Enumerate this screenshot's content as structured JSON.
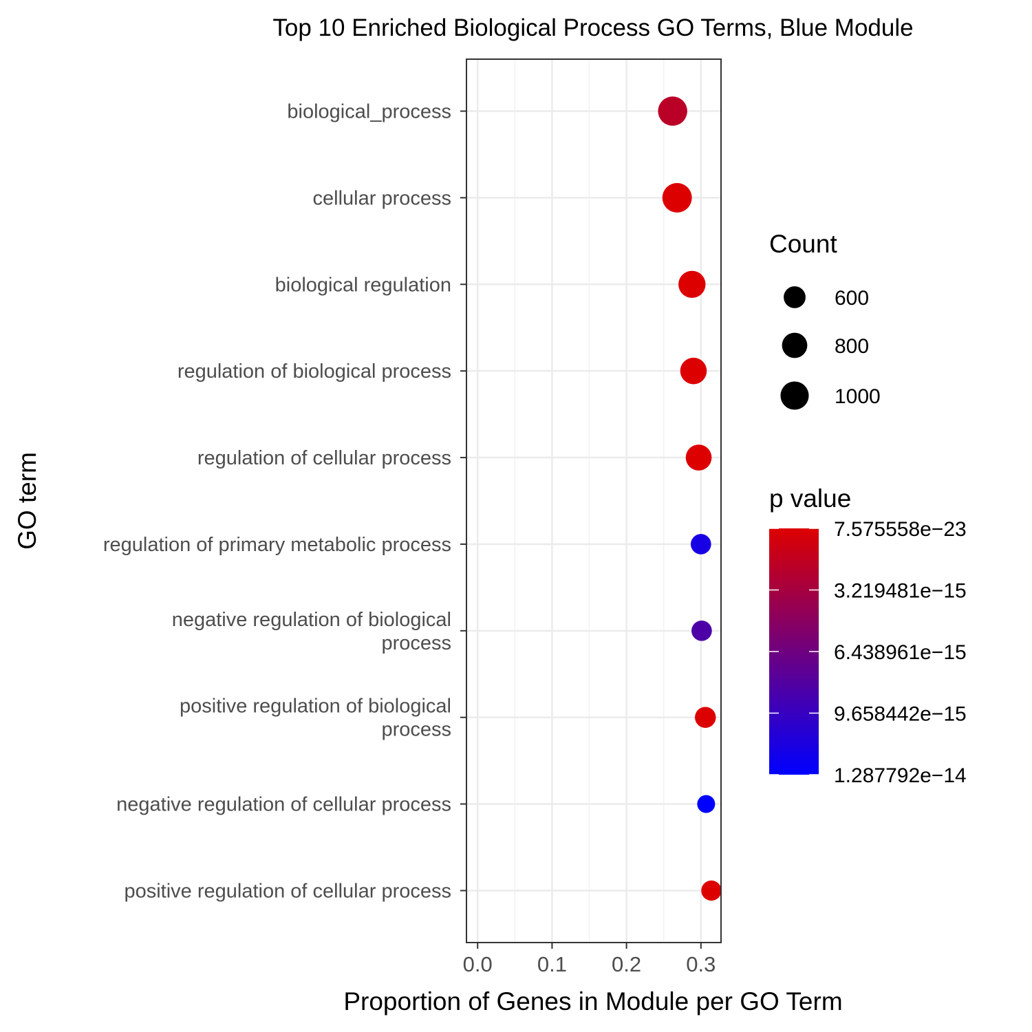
{
  "chart_data": {
    "type": "scatter",
    "title": "Top 10 Enriched Biological Process GO Terms, Blue Module",
    "xlabel": "Proportion of Genes in Module per GO Term",
    "ylabel": "GO term",
    "xlim": [
      -0.015,
      0.327
    ],
    "x_ticks": [
      "0.0",
      "0.1",
      "0.2",
      "0.3"
    ],
    "grid": true,
    "points": [
      {
        "term": "biological_process",
        "proportion": 0.262,
        "count": 1070,
        "p_value": 2e-15
      },
      {
        "term": "cellular process",
        "proportion": 0.268,
        "count": 1090,
        "p_value": 7.575558e-23
      },
      {
        "term": "biological regulation",
        "proportion": 0.288,
        "count": 920,
        "p_value": 7.575558e-23
      },
      {
        "term": "regulation of biological process",
        "proportion": 0.29,
        "count": 880,
        "p_value": 7.575558e-23
      },
      {
        "term": "regulation of cellular process",
        "proportion": 0.297,
        "count": 840,
        "p_value": 7.575558e-23
      },
      {
        "term": "regulation of primary metabolic process",
        "proportion": 0.3,
        "count": 520,
        "p_value": 1.15e-14
      },
      {
        "term": "negative regulation of biological process",
        "proportion": 0.301,
        "count": 520,
        "p_value": 8.4e-15
      },
      {
        "term": "positive regulation of biological process",
        "proportion": 0.306,
        "count": 550,
        "p_value": 7.575558e-23
      },
      {
        "term": "negative regulation of cellular process",
        "proportion": 0.307,
        "count": 400,
        "p_value": 1.287792e-14
      },
      {
        "term": "positive regulation of cellular process",
        "proportion": 0.314,
        "count": 510,
        "p_value": 7.575558e-23
      }
    ],
    "size_legend": {
      "title": "Count",
      "items": [
        {
          "label": "600",
          "value": 600
        },
        {
          "label": "800",
          "value": 800
        },
        {
          "label": "1000",
          "value": 1000
        }
      ]
    },
    "color_legend": {
      "title": "p value",
      "low_color": "#DD0000",
      "high_color": "#0000FF",
      "min": 7.575558e-23,
      "max": 1.287792e-14,
      "labels": [
        "7.575558e−23",
        "3.219481e−15",
        "6.438961e−15",
        "9.658442e−15",
        "1.287792e−14"
      ]
    }
  }
}
